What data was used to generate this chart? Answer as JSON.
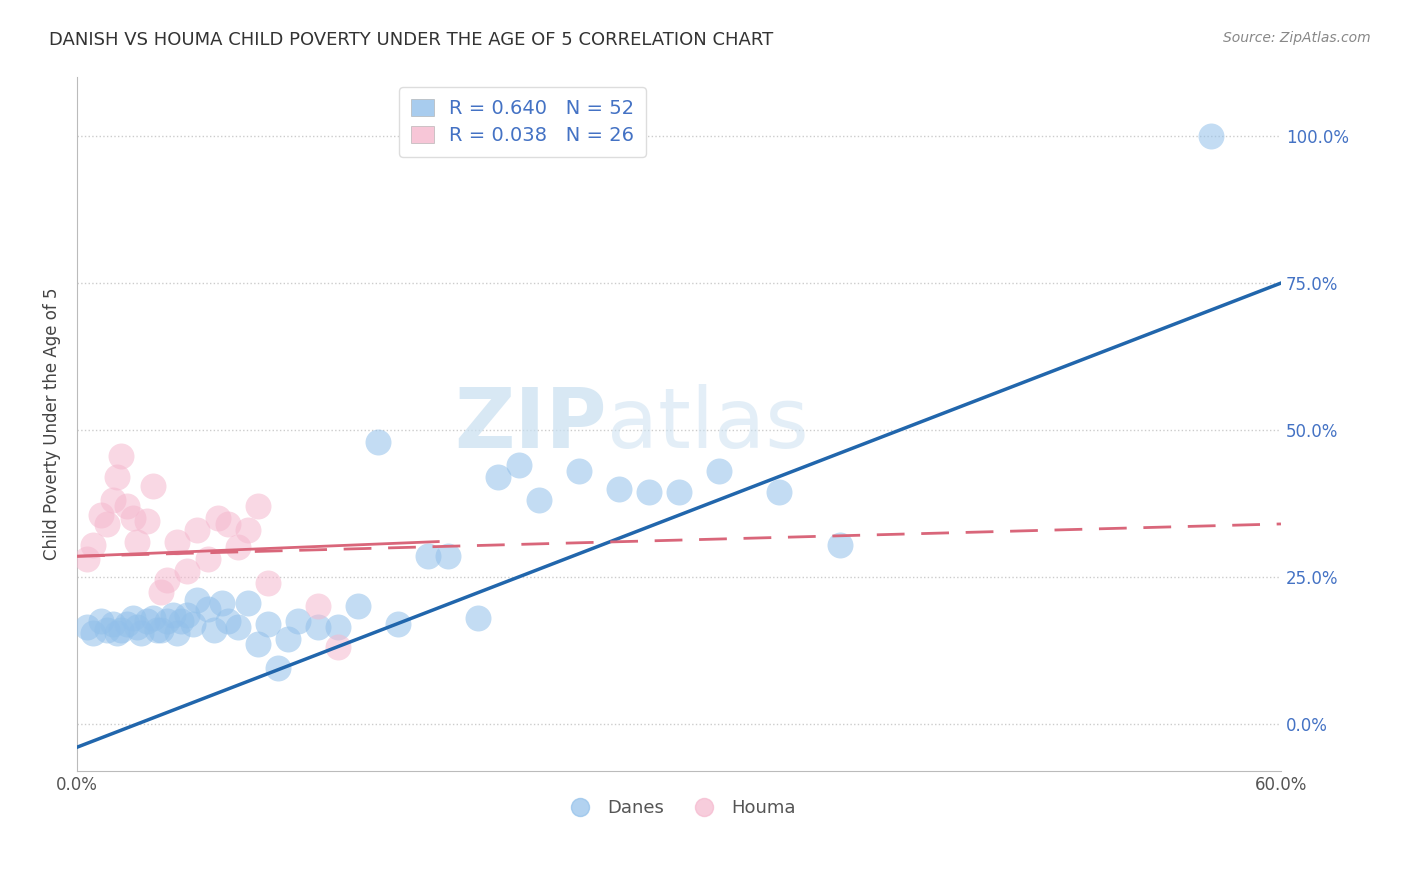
{
  "title": "DANISH VS HOUMA CHILD POVERTY UNDER THE AGE OF 5 CORRELATION CHART",
  "source": "Source: ZipAtlas.com",
  "ylabel": "Child Poverty Under the Age of 5",
  "xlabel_ticks": [
    "0.0%",
    "",
    "",
    "",
    "",
    "",
    "60.0%"
  ],
  "ylabel_ticks_vals": [
    0.0,
    0.25,
    0.5,
    0.75,
    1.0
  ],
  "ylabel_ticks_labels": [
    "0.0%",
    "25.0%",
    "50.0%",
    "75.0%",
    "100.0%"
  ],
  "xlim": [
    0.0,
    0.6
  ],
  "ylim": [
    -0.08,
    1.1
  ],
  "danes_R": 0.64,
  "danes_N": 52,
  "houma_R": 0.038,
  "houma_N": 26,
  "danes_color": "#92C0EA",
  "houma_color": "#F5B8CE",
  "danes_line_color": "#2166AC",
  "houma_line_color": "#D9667A",
  "danes_line_y0": -0.04,
  "danes_line_y1": 0.75,
  "houma_line_y0": 0.285,
  "houma_line_y1": 0.34,
  "watermark_zip": "ZIP",
  "watermark_atlas": "atlas",
  "danes_scatter_x": [
    0.005,
    0.008,
    0.012,
    0.015,
    0.018,
    0.02,
    0.022,
    0.025,
    0.028,
    0.03,
    0.032,
    0.035,
    0.038,
    0.04,
    0.042,
    0.045,
    0.048,
    0.05,
    0.052,
    0.055,
    0.058,
    0.06,
    0.065,
    0.068,
    0.072,
    0.075,
    0.08,
    0.085,
    0.09,
    0.095,
    0.1,
    0.105,
    0.11,
    0.12,
    0.13,
    0.14,
    0.15,
    0.16,
    0.175,
    0.185,
    0.2,
    0.21,
    0.22,
    0.23,
    0.25,
    0.27,
    0.285,
    0.3,
    0.32,
    0.35,
    0.38,
    0.565
  ],
  "danes_scatter_y": [
    0.165,
    0.155,
    0.175,
    0.16,
    0.17,
    0.155,
    0.16,
    0.17,
    0.18,
    0.165,
    0.155,
    0.175,
    0.18,
    0.16,
    0.16,
    0.175,
    0.185,
    0.155,
    0.175,
    0.185,
    0.17,
    0.21,
    0.195,
    0.16,
    0.205,
    0.175,
    0.165,
    0.205,
    0.135,
    0.17,
    0.095,
    0.145,
    0.175,
    0.165,
    0.165,
    0.2,
    0.48,
    0.17,
    0.285,
    0.285,
    0.18,
    0.42,
    0.44,
    0.38,
    0.43,
    0.4,
    0.395,
    0.395,
    0.43,
    0.395,
    0.305,
    1.0
  ],
  "houma_scatter_x": [
    0.005,
    0.008,
    0.012,
    0.015,
    0.018,
    0.02,
    0.022,
    0.025,
    0.028,
    0.03,
    0.035,
    0.038,
    0.042,
    0.045,
    0.05,
    0.055,
    0.06,
    0.065,
    0.07,
    0.075,
    0.08,
    0.085,
    0.09,
    0.095,
    0.12,
    0.13
  ],
  "houma_scatter_y": [
    0.28,
    0.305,
    0.355,
    0.34,
    0.38,
    0.42,
    0.455,
    0.37,
    0.35,
    0.31,
    0.345,
    0.405,
    0.225,
    0.245,
    0.31,
    0.26,
    0.33,
    0.28,
    0.35,
    0.34,
    0.3,
    0.33,
    0.37,
    0.24,
    0.2,
    0.13
  ]
}
